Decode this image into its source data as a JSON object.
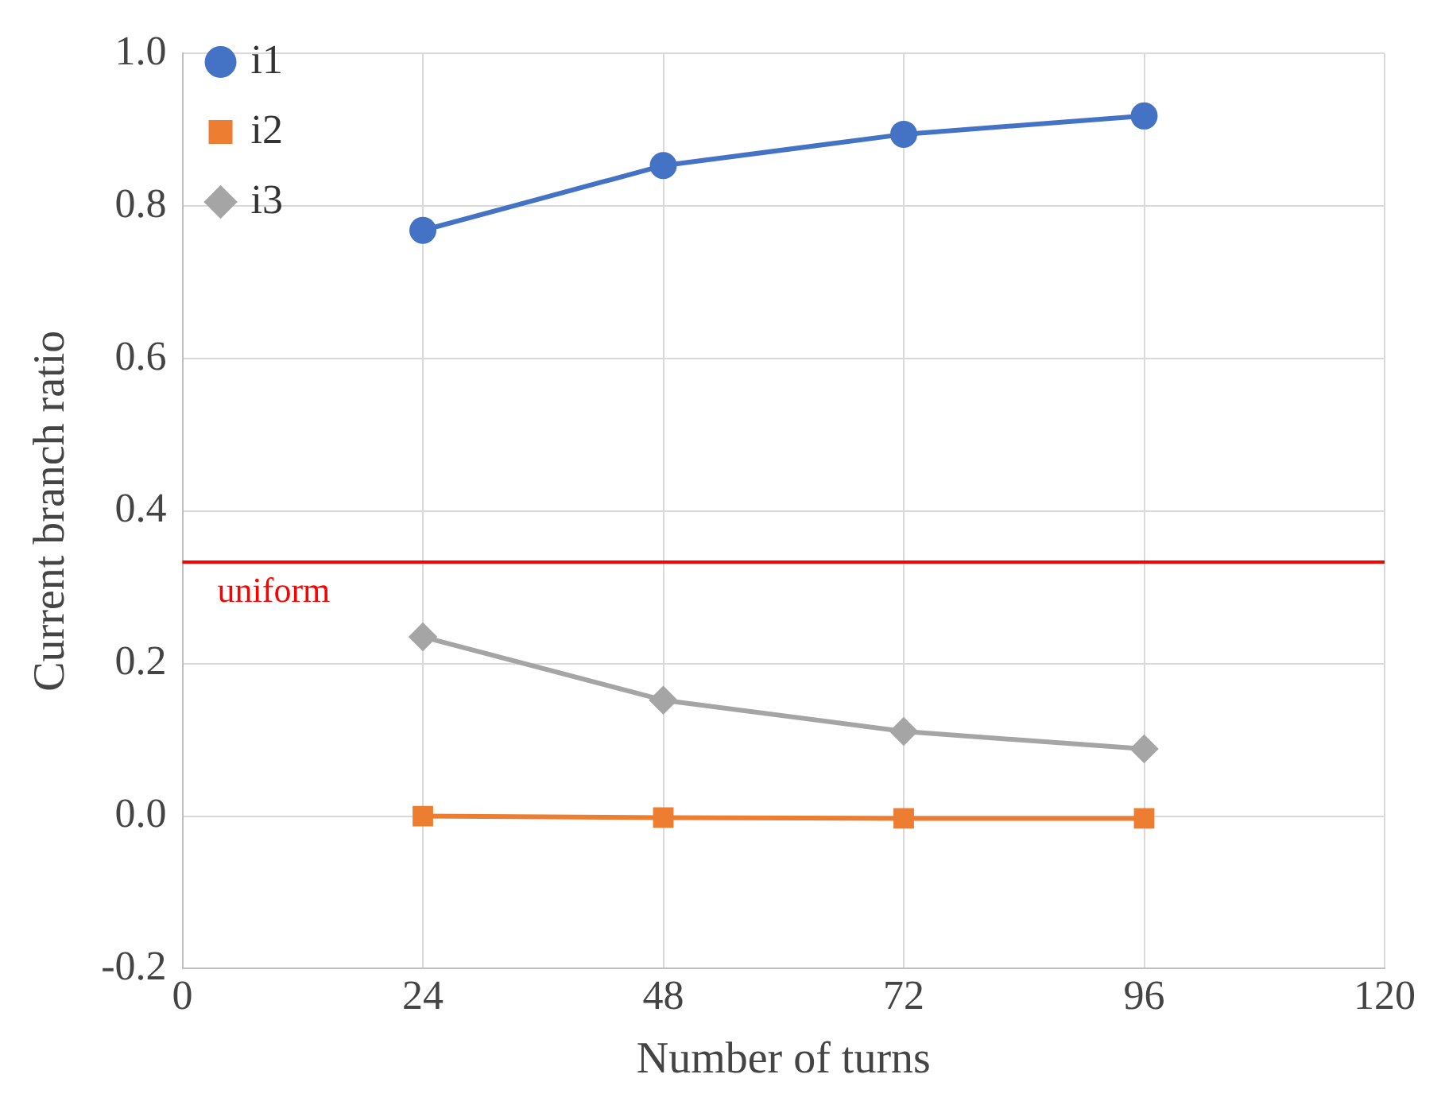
{
  "chart_data": {
    "type": "line",
    "xlabel": "Number of turns",
    "ylabel": "Current branch ratio",
    "x": [
      24,
      48,
      72,
      96
    ],
    "series": [
      {
        "name": "i1",
        "color": "#4472c4",
        "marker": "circle",
        "values": [
          0.768,
          0.853,
          0.894,
          0.918
        ]
      },
      {
        "name": "i2",
        "color": "#ed7d31",
        "marker": "square",
        "values": [
          0.0,
          -0.002,
          -0.003,
          -0.003
        ]
      },
      {
        "name": "i3",
        "color": "#a5a5a5",
        "marker": "diamond",
        "values": [
          0.235,
          0.152,
          0.111,
          0.088
        ]
      }
    ],
    "xlim": [
      0,
      120
    ],
    "xticks": [
      0,
      24,
      48,
      72,
      96,
      120
    ],
    "ylim": [
      -0.2,
      1.0
    ],
    "yticks": [
      {
        "value": -0.2,
        "label": "-0.2"
      },
      {
        "value": 0,
        "label": "0.0"
      },
      {
        "value": 0.2,
        "label": "0.2"
      },
      {
        "value": 0.4,
        "label": "0.4"
      },
      {
        "value": 0.6,
        "label": "0.6"
      },
      {
        "value": 0.8,
        "label": "0.8"
      },
      {
        "value": 1.0,
        "label": "1.0"
      }
    ],
    "ref_lines": [
      {
        "axis": "y",
        "value": 0.333,
        "label": "uniform",
        "color": "#ff0000"
      }
    ],
    "grid": true,
    "legend": "top left",
    "line_style": "solid"
  }
}
